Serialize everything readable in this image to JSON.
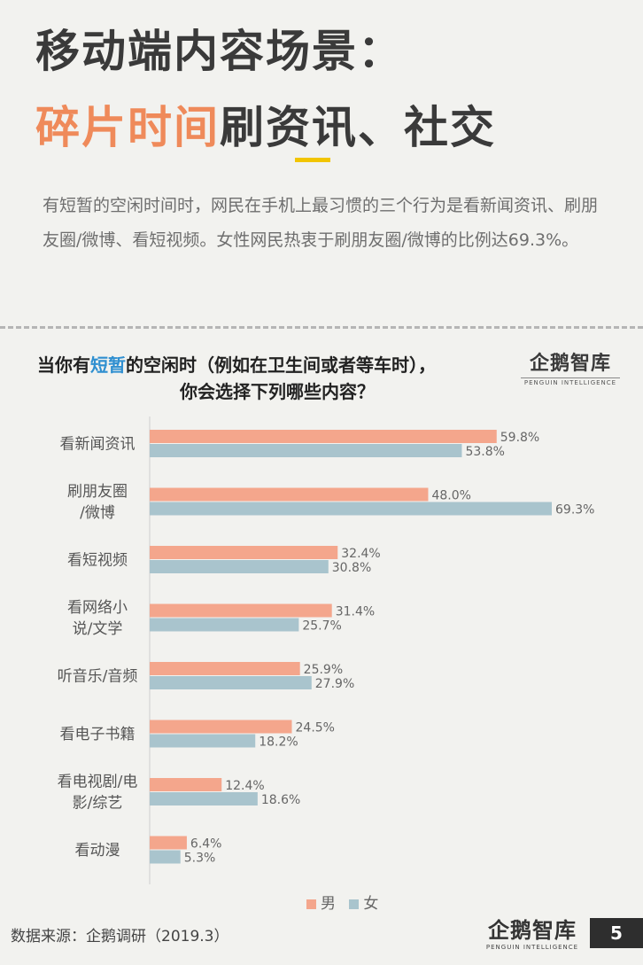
{
  "header": {
    "title_line1": "移动端内容场景：",
    "title_line2_highlight": "碎片时间",
    "title_line2_rest": "刷资讯、社交"
  },
  "intro": "有短暂的空闲时间时，网民在手机上最习惯的三个行为是看新闻资讯、刷朋友圈/微博、看短视频。女性网民热衷于刷朋友圈/微博的比例达69.3%。",
  "question": {
    "part1": "当你有",
    "highlight": "短暂",
    "part2": "的空闲时（例如在卫生间或者等车时），",
    "line2": "你会选择下列哪些内容？"
  },
  "logo": {
    "name": "企鹅智库",
    "english": "PENGUIN INTELLIGENCE"
  },
  "chart_data": {
    "type": "bar",
    "orientation": "horizontal",
    "categories": [
      [
        "看新闻资讯"
      ],
      [
        "刷朋友圈",
        "/微博"
      ],
      [
        "看短视频"
      ],
      [
        "看网络小",
        "说/文学"
      ],
      [
        "听音乐/音频"
      ],
      [
        "看电子书籍"
      ],
      [
        "看电视剧/电",
        "影/综艺"
      ],
      [
        "看动漫"
      ]
    ],
    "series": [
      {
        "name": "男",
        "color": "#f4a68c",
        "values": [
          59.8,
          48.0,
          32.4,
          31.4,
          25.9,
          24.5,
          12.4,
          6.4
        ],
        "labels": [
          "59.8%",
          "48.0%",
          "32.4%",
          "31.4%",
          "25.9%",
          "24.5%",
          "12.4%",
          "6.4%"
        ]
      },
      {
        "name": "女",
        "color": "#a9c4cd",
        "values": [
          53.8,
          69.3,
          30.8,
          25.7,
          27.9,
          18.2,
          18.6,
          5.3
        ],
        "labels": [
          "53.8%",
          "69.3%",
          "30.8%",
          "25.7%",
          "27.9%",
          "18.2%",
          "18.6%",
          "5.3%"
        ]
      }
    ],
    "xlim": [
      0,
      70
    ],
    "legend": "bottom",
    "grid": false
  },
  "footer": {
    "source": "数据来源：企鹅调研（2019.3）",
    "page": "5"
  }
}
